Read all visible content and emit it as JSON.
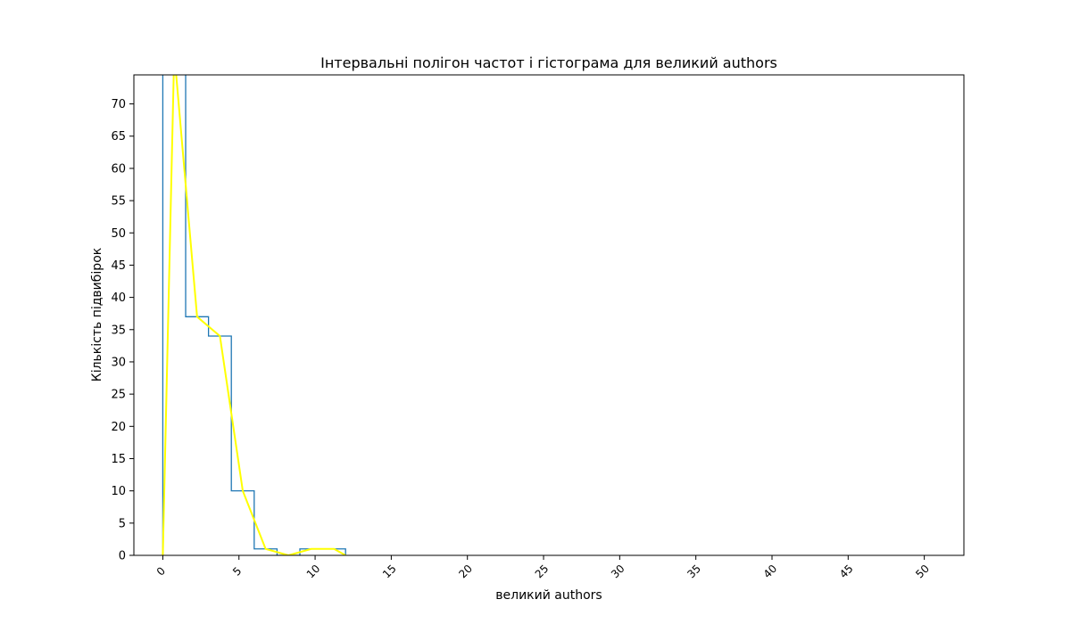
{
  "chart_data": {
    "type": "histogram",
    "title": "Інтервальні полігон частот і гістограма для великий authors",
    "xlabel": "великий authors",
    "ylabel": "Кількість підвибірок",
    "xlim": [
      -1.9,
      52.6
    ],
    "ylim": [
      0,
      74.5
    ],
    "x_ticks": [
      0,
      5,
      10,
      15,
      20,
      25,
      30,
      35,
      40,
      45,
      50
    ],
    "y_ticks": [
      0,
      5,
      10,
      15,
      20,
      25,
      30,
      35,
      40,
      45,
      50,
      55,
      60,
      65,
      70
    ],
    "grid": false,
    "histogram": {
      "bin_edges": [
        0,
        1.5,
        3.0,
        4.5,
        6.0,
        7.5,
        9.0,
        10.5,
        12.0
      ],
      "counts": [
        78,
        37,
        34,
        10,
        1,
        0,
        1,
        1
      ],
      "color": "#1f77b4"
    },
    "polygon": {
      "x": [
        0,
        0.75,
        2.25,
        3.75,
        5.25,
        6.75,
        8.25,
        9.75,
        11.25,
        12.0
      ],
      "y": [
        0,
        78,
        37,
        34,
        10,
        1,
        0,
        1,
        1,
        0
      ],
      "color": "#ffff00"
    }
  }
}
